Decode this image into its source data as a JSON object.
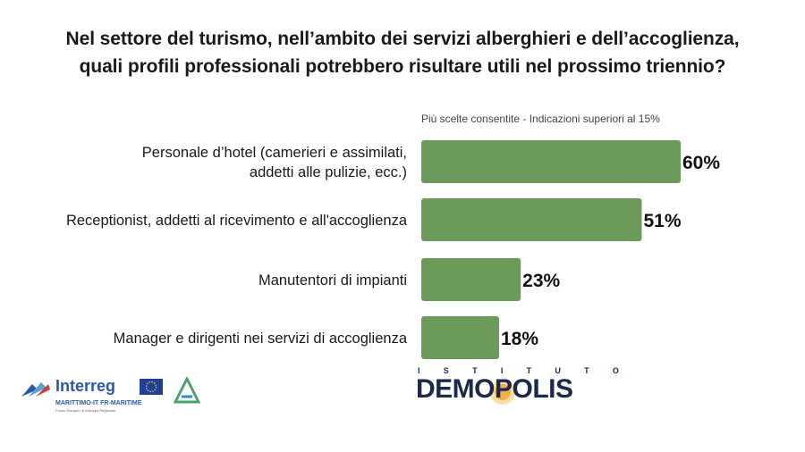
{
  "title_line1": "Nel settore del turismo, nell’ambito dei servizi alberghieri e dell’accoglienza,",
  "title_line2": "quali profili professionali potrebbero risultare utili nel prossimo triennio?",
  "note": "Più scelte consentite - Indicazioni superiori al 15%",
  "colors": {
    "bar": "#6b9a5b",
    "text": "#1a1a1a"
  },
  "chart_data": {
    "type": "bar",
    "orientation": "horizontal",
    "categories": [
      [
        "Personale d’hotel (camerieri e assimilati,",
        "addetti alle pulizie, ecc.)"
      ],
      [
        "Receptionist, addetti al ricevimento e all'accoglienza"
      ],
      [
        "Manutentori di impianti"
      ],
      [
        "Manager e dirigenti nei servizi di accoglienza"
      ]
    ],
    "values": [
      60,
      51,
      23,
      18
    ],
    "value_labels": [
      "60%",
      "51%",
      "23%",
      "18%"
    ],
    "unit": "%",
    "xlim": [
      0,
      60
    ],
    "grid": false,
    "legend": "none"
  },
  "logos": {
    "interreg": {
      "name": "Interreg",
      "sub": "MARITTIMO-IT FR-MARITIME",
      "small_text": "Fondo Europeo di Sviluppo Regionale"
    },
    "demopolis": {
      "top": "ISTITUTO",
      "name": "DEMOPOLIS"
    }
  }
}
